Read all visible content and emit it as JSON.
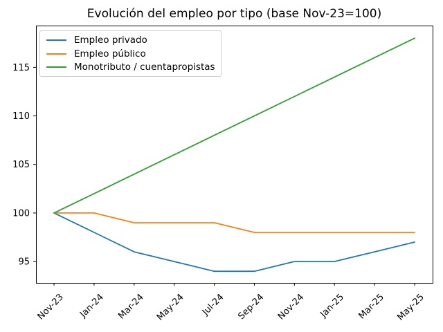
{
  "chart_data": {
    "type": "line",
    "title": "Evolución del empleo por tipo (base Nov-23=100)",
    "categories": [
      "Nov-23",
      "Jan-24",
      "Mar-24",
      "May-24",
      "Jul-24",
      "Sep-24",
      "Nov-24",
      "Jan-25",
      "Mar-25",
      "May-25"
    ],
    "series": [
      {
        "name": "Empleo privado",
        "color": "#1f77b4",
        "values": [
          100,
          98,
          96,
          95,
          94,
          94,
          95,
          95,
          96,
          97
        ]
      },
      {
        "name": "Empleo público",
        "color": "#ff7f0e",
        "values": [
          100,
          100,
          99,
          99,
          99,
          98,
          98,
          98,
          98,
          98
        ]
      },
      {
        "name": "Monotributo / cuentapropistas",
        "color": "#2ca02c",
        "values": [
          100,
          102,
          104,
          106,
          108,
          110,
          112,
          114,
          116,
          118
        ]
      }
    ],
    "xlabel": "",
    "ylabel": "",
    "yticks": [
      95,
      100,
      105,
      110,
      115
    ],
    "ylim": [
      92.8,
      119.3
    ],
    "grid": false,
    "legend_position": "upper left",
    "spine_color": "#000000",
    "background_color": "#ffffff"
  }
}
